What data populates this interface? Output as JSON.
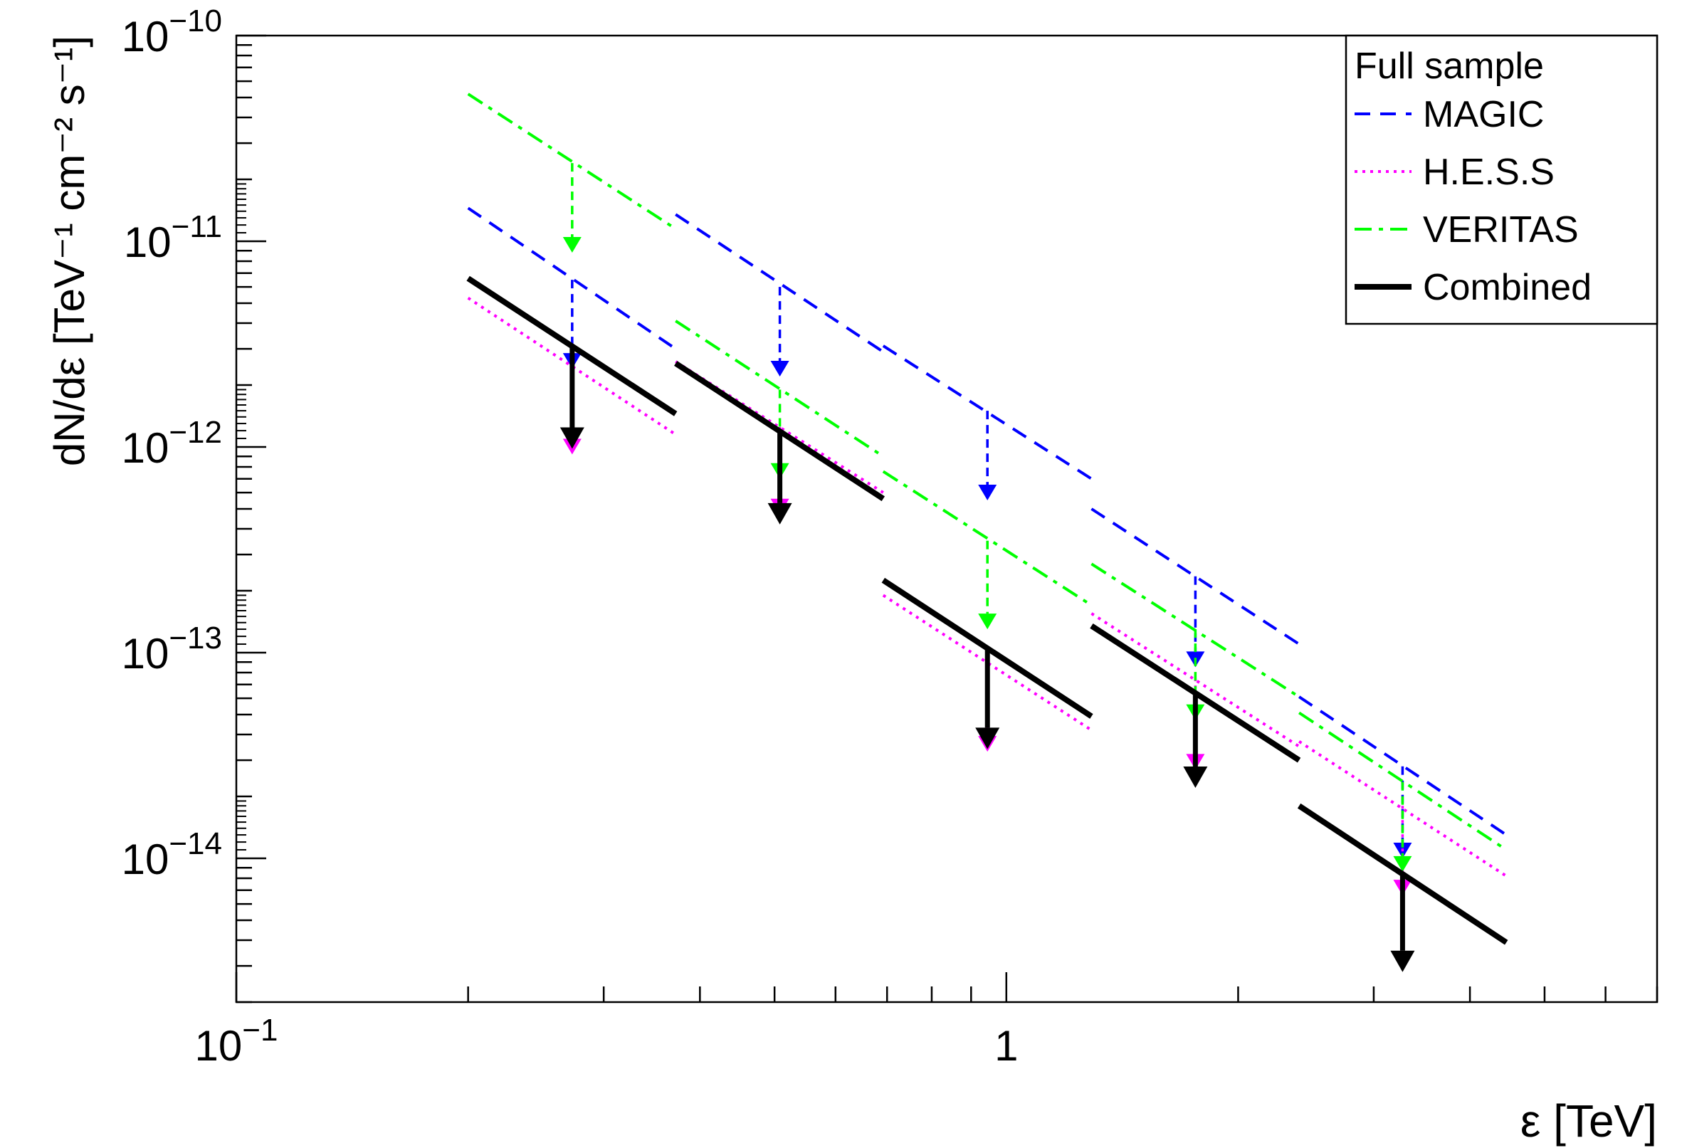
{
  "chart_data": {
    "type": "line",
    "title": "",
    "xlabel": "ε [TeV]",
    "ylabel": "dN/dε [TeV⁻¹ cm⁻² s⁻¹]",
    "x_scale": "log",
    "y_scale": "log",
    "xlim": [
      0.1,
      7.0
    ],
    "ylim": [
      2e-15,
      1e-10
    ],
    "grid": false,
    "x_ticks": [
      {
        "value": 0.1,
        "base": "10",
        "exp": "−1"
      },
      {
        "value": 1,
        "base": "1",
        "exp": ""
      }
    ],
    "y_ticks": [
      {
        "value": 1e-10,
        "base": "10",
        "exp": "−10"
      },
      {
        "value": 1e-11,
        "base": "10",
        "exp": "−11"
      },
      {
        "value": 1e-12,
        "base": "10",
        "exp": "−12"
      },
      {
        "value": 1e-13,
        "base": "10",
        "exp": "−13"
      },
      {
        "value": 1e-14,
        "base": "10",
        "exp": "−14"
      }
    ],
    "legend": {
      "title": "Full sample",
      "position": "top-right",
      "entries": [
        {
          "label": "MAGIC",
          "series": "MAGIC"
        },
        {
          "label": "H.E.S.S",
          "series": "H.E.S.S"
        },
        {
          "label": "VERITAS",
          "series": "VERITAS"
        },
        {
          "label": "Combined",
          "series": "Combined"
        }
      ]
    },
    "bins": [
      {
        "emin": 0.2,
        "emax": 0.372,
        "center": 0.273
      },
      {
        "emin": 0.372,
        "emax": 0.692,
        "center": 0.508
      },
      {
        "emin": 0.692,
        "emax": 1.29,
        "center": 0.945
      },
      {
        "emin": 1.29,
        "emax": 2.4,
        "center": 1.76
      },
      {
        "emin": 2.4,
        "emax": 4.46,
        "center": 3.27
      }
    ],
    "series": [
      {
        "name": "MAGIC",
        "color": "#0000ff",
        "dash": "dashed",
        "segments": [
          {
            "x": [
              0.2,
              0.372
            ],
            "y": [
              1.45e-11,
              3e-12
            ]
          },
          {
            "x": [
              0.372,
              0.692
            ],
            "y": [
              1.35e-11,
              2.9e-12
            ]
          },
          {
            "x": [
              0.692,
              1.29
            ],
            "y": [
              3.1e-12,
              7e-13
            ]
          },
          {
            "x": [
              1.29,
              2.4
            ],
            "y": [
              5e-13,
              1.1e-13
            ]
          },
          {
            "x": [
              2.4,
              4.46
            ],
            "y": [
              6.1e-14,
              1.3e-14
            ]
          }
        ],
        "upper_limits": [
          {
            "x": 0.273,
            "from": 6.5e-12,
            "to": 2.4e-12
          },
          {
            "x": 0.508,
            "from": 6e-12,
            "to": 2.2e-12
          },
          {
            "x": 0.945,
            "from": 1.5e-12,
            "to": 5.5e-13
          },
          {
            "x": 1.76,
            "from": 2.35e-13,
            "to": 8.5e-14
          },
          {
            "x": 3.27,
            "from": 2.8e-14,
            "to": 1e-14
          }
        ]
      },
      {
        "name": "H.E.S.S",
        "color": "#ff00ff",
        "dash": "dotted",
        "segments": [
          {
            "x": [
              0.2,
              0.372
            ],
            "y": [
              5.3e-12,
              1.15e-12
            ]
          },
          {
            "x": [
              0.372,
              0.692
            ],
            "y": [
              2.6e-12,
              6e-13
            ]
          },
          {
            "x": [
              0.692,
              1.29
            ],
            "y": [
              1.9e-13,
              4.2e-14
            ]
          },
          {
            "x": [
              1.29,
              2.4
            ],
            "y": [
              1.55e-13,
              3.5e-14
            ]
          },
          {
            "x": [
              2.4,
              4.46
            ],
            "y": [
              3.7e-14,
              8.2e-15
            ]
          }
        ],
        "upper_limits": [
          {
            "x": 0.273,
            "from": 2.5e-12,
            "to": 9.2e-13
          },
          {
            "x": 0.508,
            "from": 1.25e-12,
            "to": 4.7e-13
          },
          {
            "x": 0.945,
            "from": 9e-14,
            "to": 3.3e-14
          },
          {
            "x": 1.76,
            "from": 7.5e-14,
            "to": 2.7e-14
          },
          {
            "x": 3.27,
            "from": 1.8e-14,
            "to": 6.6e-15
          }
        ]
      },
      {
        "name": "VERITAS",
        "color": "#00ff00",
        "dash": "dash-dot",
        "segments": [
          {
            "x": [
              0.2,
              0.372
            ],
            "y": [
              5.2e-11,
              1.15e-11
            ]
          },
          {
            "x": [
              0.372,
              0.692
            ],
            "y": [
              4.1e-12,
              9e-13
            ]
          },
          {
            "x": [
              0.692,
              1.29
            ],
            "y": [
              7.6e-13,
              1.7e-13
            ]
          },
          {
            "x": [
              1.29,
              2.4
            ],
            "y": [
              2.7e-13,
              6.1e-14
            ]
          },
          {
            "x": [
              2.4,
              4.46
            ],
            "y": [
              5.1e-14,
              1.1e-14
            ]
          }
        ],
        "upper_limits": [
          {
            "x": 0.273,
            "from": 2.4e-11,
            "to": 8.8e-12
          },
          {
            "x": 0.508,
            "from": 1.9e-12,
            "to": 7e-13
          },
          {
            "x": 0.945,
            "from": 3.5e-13,
            "to": 1.3e-13
          },
          {
            "x": 1.76,
            "from": 1.3e-13,
            "to": 4.7e-14
          },
          {
            "x": 3.27,
            "from": 2.35e-14,
            "to": 8.6e-15
          }
        ]
      },
      {
        "name": "Combined",
        "color": "#000000",
        "dash": "solid",
        "segments": [
          {
            "x": [
              0.2,
              0.372
            ],
            "y": [
              6.6e-12,
              1.45e-12
            ]
          },
          {
            "x": [
              0.372,
              0.692
            ],
            "y": [
              2.55e-12,
              5.6e-13
            ]
          },
          {
            "x": [
              0.692,
              1.29
            ],
            "y": [
              2.25e-13,
              4.9e-14
            ]
          },
          {
            "x": [
              1.29,
              2.4
            ],
            "y": [
              1.35e-13,
              3e-14
            ]
          },
          {
            "x": [
              2.4,
              4.46
            ],
            "y": [
              1.8e-14,
              3.9e-15
            ]
          }
        ],
        "upper_limits": [
          {
            "x": 0.273,
            "from": 3.1e-12,
            "to": 9.8e-13
          },
          {
            "x": 0.508,
            "from": 1.2e-12,
            "to": 4.2e-13
          },
          {
            "x": 0.945,
            "from": 1.05e-13,
            "to": 3.4e-14
          },
          {
            "x": 1.76,
            "from": 6.4e-14,
            "to": 2.2e-14
          },
          {
            "x": 3.27,
            "from": 8.5e-15,
            "to": 2.8e-15
          }
        ]
      }
    ]
  }
}
